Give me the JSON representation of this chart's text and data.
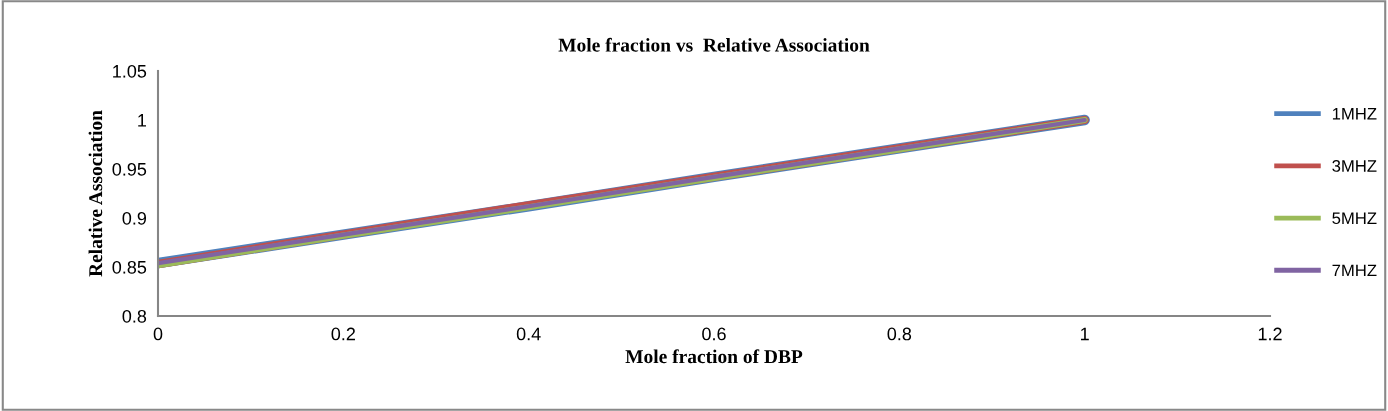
{
  "chart_data": {
    "type": "line",
    "title": "Mole fraction vs  Relative Association",
    "xlabel": "Mole fraction of DBP",
    "ylabel": "Relative Association",
    "x": [
      0,
      0.2,
      0.4,
      0.6,
      0.8,
      1
    ],
    "series": [
      {
        "name": "1MHZ",
        "color": "#4f81bd",
        "values": [
          0.854,
          0.883,
          0.912,
          0.942,
          0.971,
          1.0
        ]
      },
      {
        "name": "3MHZ",
        "color": "#c0504d",
        "values": [
          0.853,
          0.883,
          0.913,
          0.942,
          0.971,
          1.0
        ]
      },
      {
        "name": "5MHZ",
        "color": "#9bbb59",
        "values": [
          0.852,
          0.882,
          0.911,
          0.941,
          0.97,
          1.0
        ]
      },
      {
        "name": "7MHZ",
        "color": "#8064a2",
        "values": [
          0.854,
          0.883,
          0.912,
          0.942,
          0.971,
          1.0
        ]
      }
    ],
    "xlim": [
      0,
      1.2
    ],
    "xticks": [
      0,
      0.2,
      0.4,
      0.6,
      0.8,
      1,
      1.2
    ],
    "ylim": [
      0.8,
      1.05
    ],
    "yticks": [
      0.8,
      0.85,
      0.9,
      0.95,
      1,
      1.05
    ],
    "grid": false,
    "legend": "right",
    "marker": "none",
    "line_style": "solid"
  }
}
